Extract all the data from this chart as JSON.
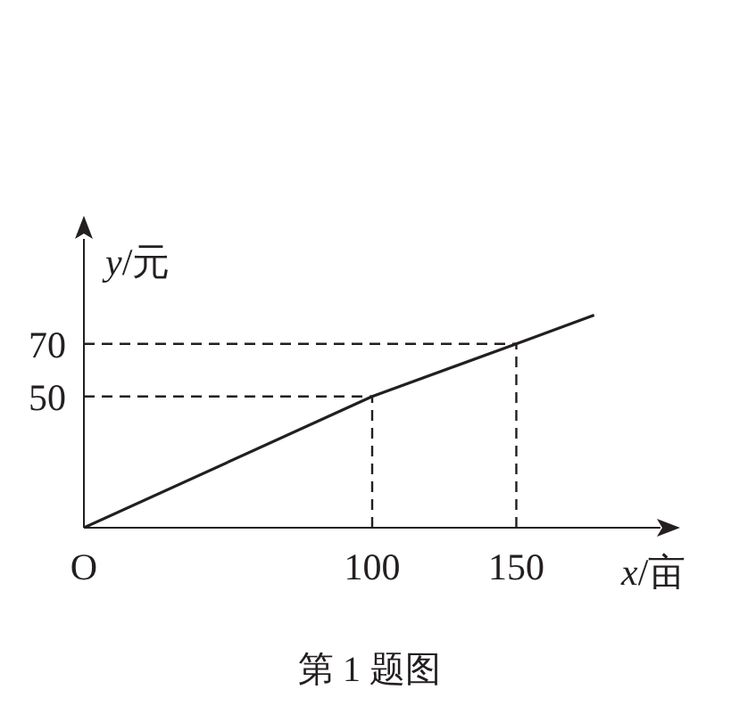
{
  "chart_data": {
    "type": "line",
    "xlabel": "x/亩",
    "ylabel": "y/元",
    "annotations": [
      "第 1 题图"
    ],
    "x": [
      0,
      100,
      150,
      177
    ],
    "series": [
      {
        "color": "#231f20",
        "values": [
          0,
          50,
          70,
          81
        ]
      }
    ],
    "xlim": [
      0,
      200
    ],
    "ylim": [
      0,
      110
    ],
    "xticks": [
      {
        "value": 0,
        "label": "O"
      },
      100,
      150
    ],
    "yticks": [
      50,
      70
    ],
    "ref_lines": [
      {
        "axis": "x",
        "value": 100,
        "line_style": "dashed"
      },
      {
        "axis": "x",
        "value": 150,
        "line_style": "dashed"
      },
      {
        "axis": "y",
        "value": 50,
        "line_style": "dashed"
      },
      {
        "axis": "y",
        "value": 70,
        "line_style": "dashed"
      }
    ],
    "marker": "none",
    "grid": false,
    "legend": false
  }
}
